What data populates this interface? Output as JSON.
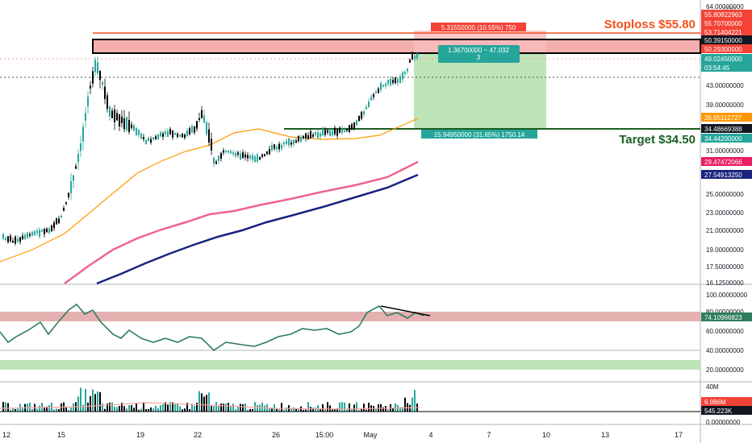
{
  "axis": {
    "currency": "USD",
    "x_tick_labels": [
      "12",
      "15",
      "19",
      "22",
      "26",
      "15:00",
      "May",
      "4",
      "7",
      "10",
      "13",
      "17"
    ],
    "y_tick_labels": [
      "64.00000000",
      "45.00000000",
      "43.00000000",
      "39.00000000",
      "37.00000000",
      "33.00000000",
      "31.00000000",
      "25.00000000",
      "23.00000000",
      "21.00000000",
      "19.00000000",
      "17.50000000",
      "16.12500000"
    ],
    "rsi_tick_labels": [
      "100.00000000",
      "80.00000000",
      "60.00000000",
      "40.00000000",
      "20.00000000"
    ],
    "vol_tick_labels": [
      "40M",
      "0.00000000"
    ]
  },
  "price_tags": [
    {
      "text": "55.80822963",
      "color": "#f44336"
    },
    {
      "text": "55.70700000",
      "color": "#f44336"
    },
    {
      "text": "53.71404221",
      "color": "#f44336"
    },
    {
      "text": "50.39150000",
      "color": "#131722"
    },
    {
      "text": "50.29300000",
      "color": "#f44336"
    },
    {
      "text": "49.02450000",
      "color": "#26a69a"
    },
    {
      "text": "03:54:45",
      "color": "#26a69a"
    },
    {
      "text": "36.65112727",
      "color": "#ff9800"
    },
    {
      "text": "34.48669388",
      "color": "#131722"
    },
    {
      "text": "34.44200000",
      "color": "#26a69a"
    },
    {
      "text": "29.47472066",
      "color": "#e91e63"
    },
    {
      "text": "27.54913250",
      "color": "#1a237e"
    },
    {
      "text": "74.10966823",
      "color": "#2e7d5b"
    },
    {
      "text": "6.986M",
      "color": "#f44336"
    },
    {
      "text": "545.223K",
      "color": "#131722"
    }
  ],
  "annotations": {
    "stoploss": "Stoploss $55.80",
    "target": "Target $34.50",
    "risk_label": "5.31550000 (10.55%) 750",
    "entry_label_1": "1.36700000 ~ 47.032",
    "entry_label_2": "3",
    "reward_label": "15.94950000 (31.65%) 1750.14"
  },
  "colors": {
    "up": "#26a69a",
    "down": "#000000",
    "ema_fast": "#ff9800",
    "ema_mid": "#f06292",
    "ema_slow": "#1a237e",
    "rsi": "#2e7d5b",
    "stop_zone": "#f4a6a6",
    "target_zone": "#b7e1b0",
    "stoploss_text": "#f4511e",
    "target_text": "#1b5e20"
  },
  "chart_data": {
    "type": "candlestick",
    "symbol_currency": "USD",
    "x_labels": [
      "12",
      "15",
      "19",
      "22",
      "26",
      "15:00",
      "May",
      "4",
      "7",
      "10",
      "13",
      "17"
    ],
    "price_axis_range": [
      16.125,
      64.0
    ],
    "key_levels": {
      "stoploss": 55.8,
      "entry": 49.0245,
      "target": 34.5
    },
    "series": [
      {
        "indicator": "ema_fast",
        "last": 36.65112727
      },
      {
        "indicator": "ema_mid",
        "last": 29.47472066
      },
      {
        "indicator": "ema_slow",
        "last": 27.5491325
      }
    ],
    "rsi_last": 74.10966823,
    "volume_last": "545.223K",
    "volume_ma_last": "6.986M"
  }
}
